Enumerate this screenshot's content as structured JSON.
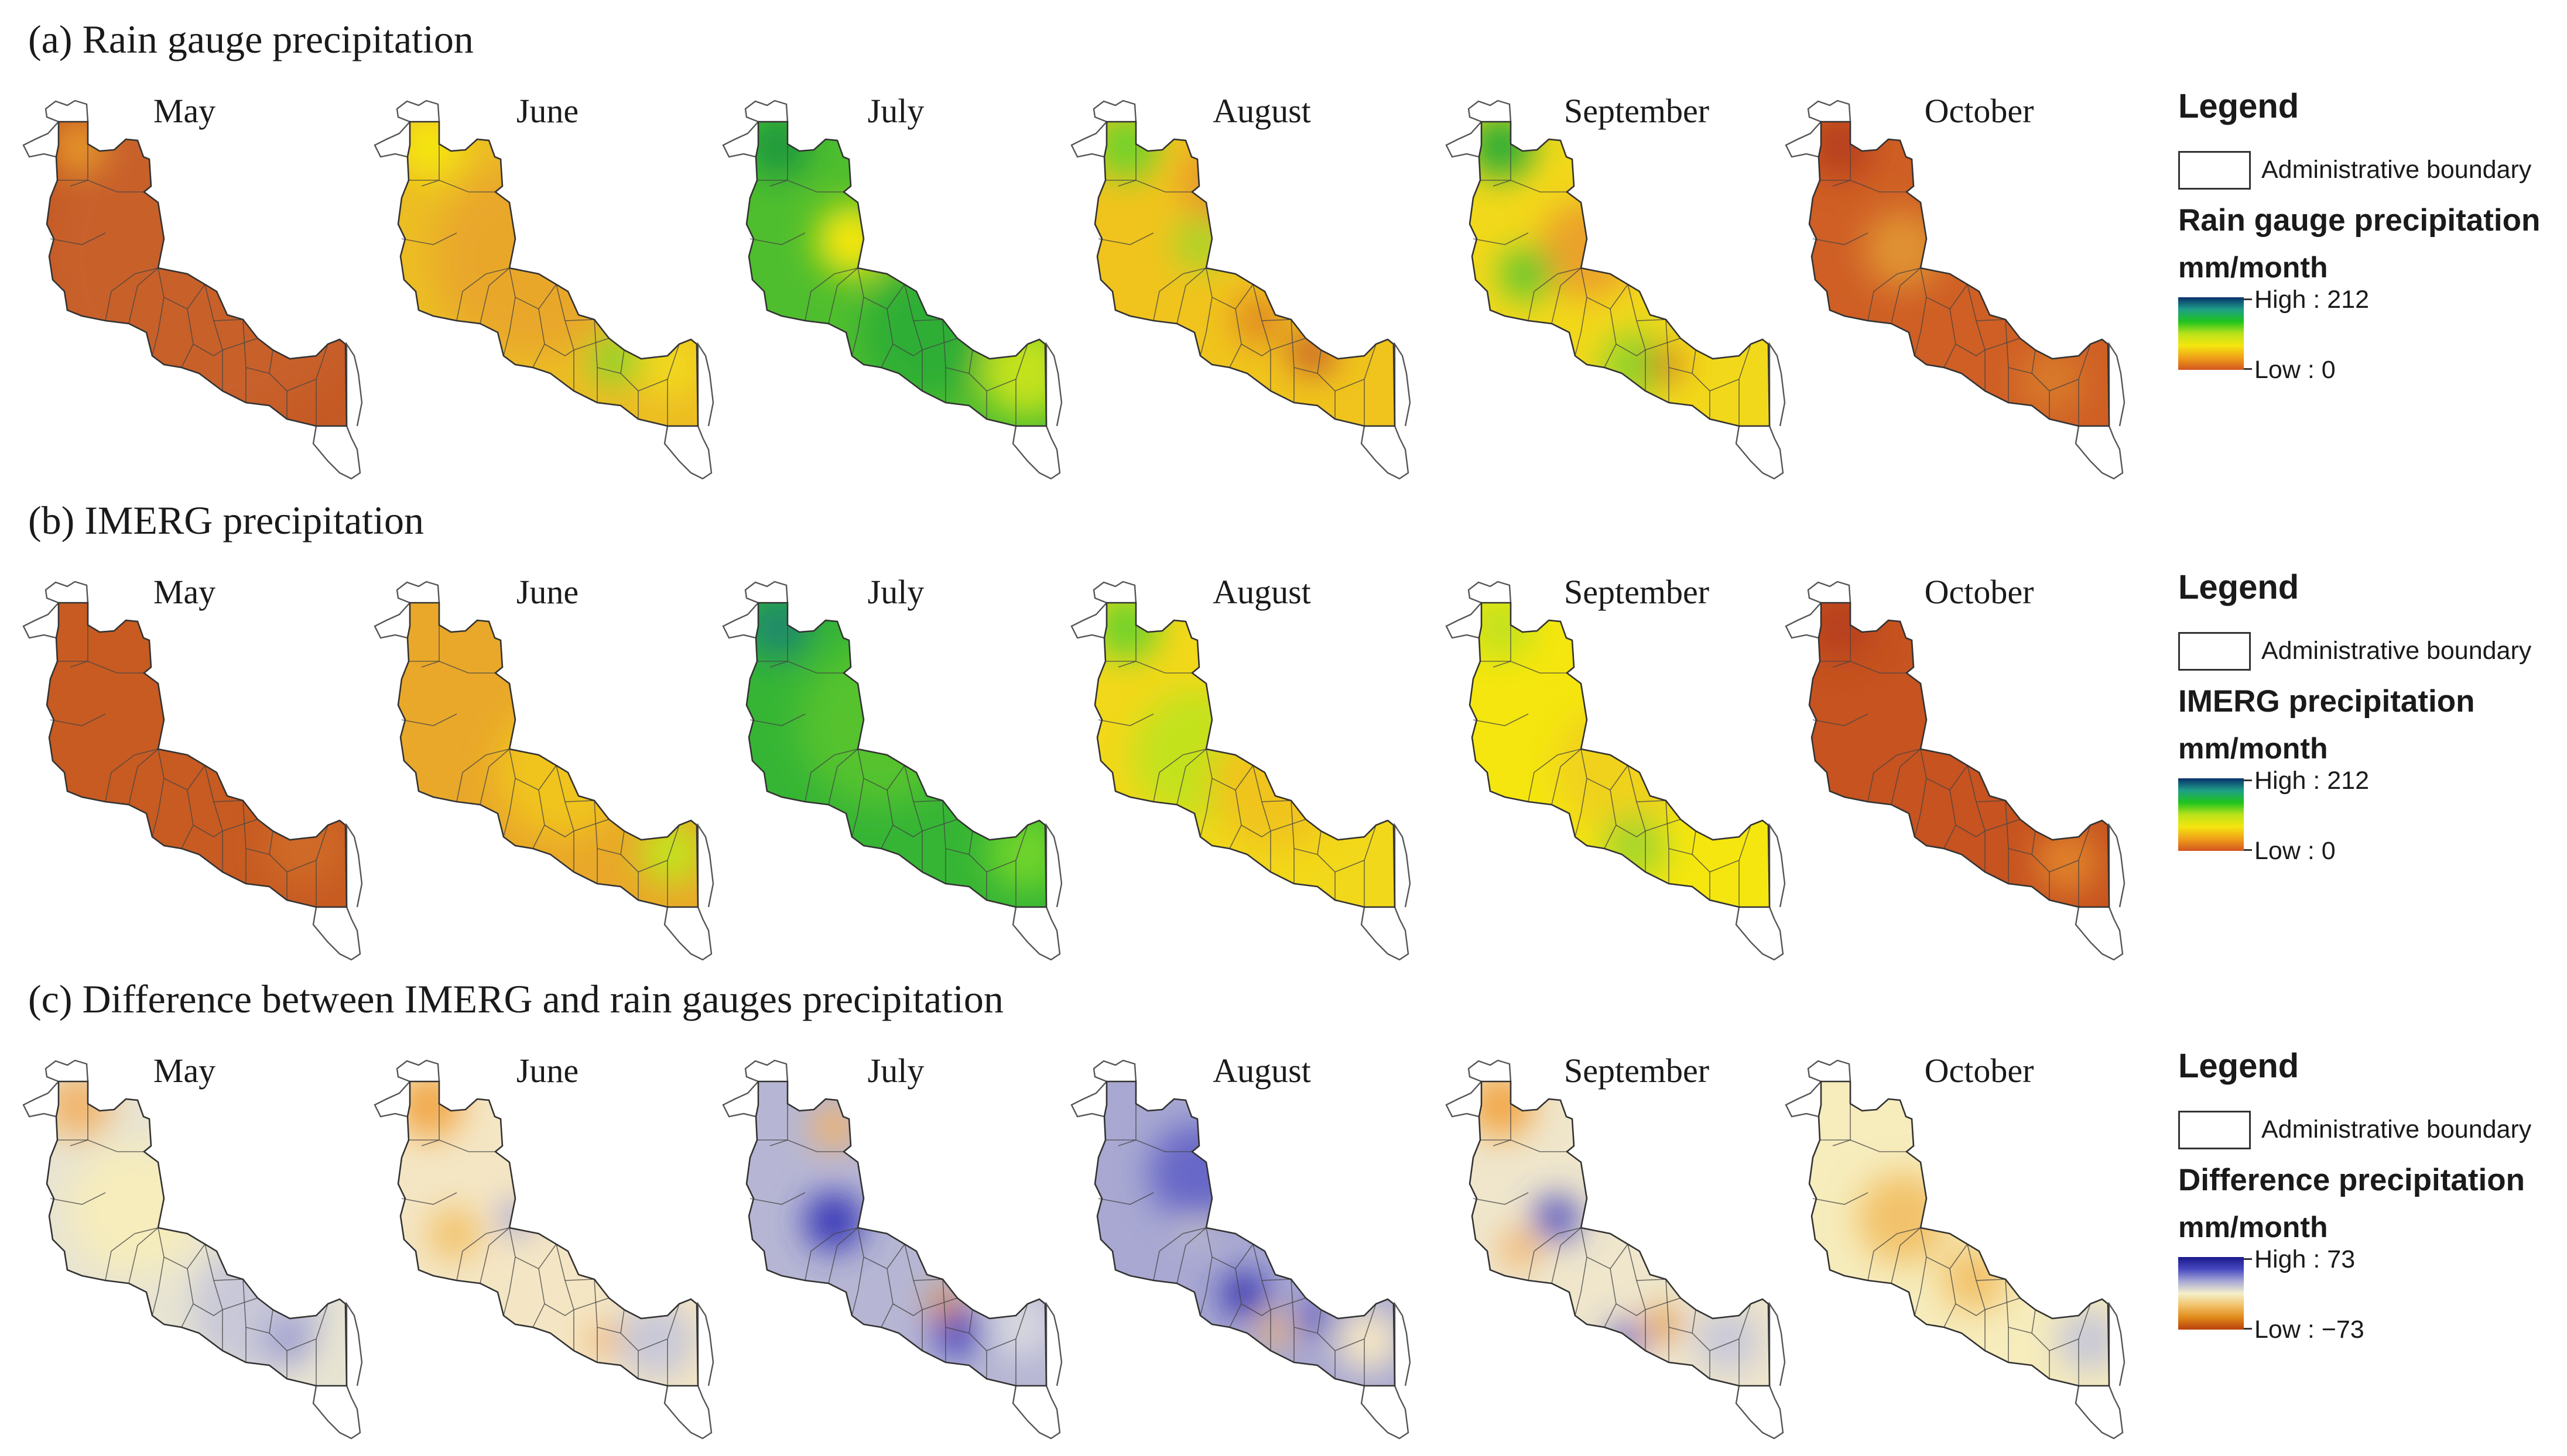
{
  "rows": [
    {
      "title": "(a) Rain gauge precipitation",
      "months": [
        "May",
        "June",
        "July",
        "August",
        "September",
        "October"
      ],
      "legend": {
        "title": "Legend",
        "boundary_label": "Administrative boundary",
        "layer_title": "Rain gauge precipitation",
        "unit": "mm/month",
        "high_label": "High : 212",
        "low_label": "Low : 0",
        "ramp_colors": [
          "#08306b",
          "#1f9e89",
          "#1ec31e",
          "#b9e21a",
          "#f5e60f",
          "#f0a019",
          "#d2551e"
        ]
      },
      "month_fields": [
        {
          "base": "#c55a25",
          "blobs": [
            [
              "#c8602a",
              0.55,
              0.45,
              0.5
            ],
            [
              "#e89a2c",
              0.12,
              0.08,
              0.08
            ]
          ]
        },
        {
          "base": "#ecbd24",
          "blobs": [
            [
              "#e9a72a",
              0.45,
              0.45,
              0.3
            ],
            [
              "#f5e60f",
              0.12,
              0.08,
              0.1
            ],
            [
              "#8ed42a",
              0.72,
              0.78,
              0.08
            ],
            [
              "#f2d81a",
              0.9,
              0.8,
              0.1
            ]
          ]
        },
        {
          "base": "#4fbe2e",
          "blobs": [
            [
              "#1f9a3c",
              0.12,
              0.08,
              0.1
            ],
            [
              "#f07a1a",
              0.36,
              0.39,
              0.05
            ],
            [
              "#f5e60f",
              0.36,
              0.39,
              0.11
            ],
            [
              "#2fae36",
              0.6,
              0.7,
              0.2
            ],
            [
              "#c3e21a",
              0.92,
              0.82,
              0.14
            ]
          ]
        },
        {
          "base": "#f0c41d",
          "blobs": [
            [
              "#6ed32a",
              0.12,
              0.08,
              0.1
            ],
            [
              "#a6d62a",
              0.36,
              0.4,
              0.08
            ],
            [
              "#e89a2c",
              0.42,
              0.2,
              0.12
            ],
            [
              "#c8602a",
              0.72,
              0.76,
              0.07
            ],
            [
              "#e08a24",
              0.55,
              0.65,
              0.08
            ]
          ]
        },
        {
          "base": "#f2d81a",
          "blobs": [
            [
              "#2fae36",
              0.12,
              0.08,
              0.1
            ],
            [
              "#eba22a",
              0.4,
              0.42,
              0.15
            ],
            [
              "#5fc82e",
              0.2,
              0.5,
              0.08
            ],
            [
              "#8ed42a",
              0.55,
              0.8,
              0.1
            ],
            [
              "#d26a26",
              0.65,
              0.8,
              0.05
            ]
          ]
        },
        {
          "base": "#cf5f25",
          "blobs": [
            [
              "#b8401e",
              0.12,
              0.08,
              0.1
            ],
            [
              "#e09330",
              0.32,
              0.42,
              0.12
            ],
            [
              "#d87a2a",
              0.8,
              0.85,
              0.1
            ]
          ]
        }
      ]
    },
    {
      "title": "(b) IMERG precipitation",
      "months": [
        "May",
        "June",
        "July",
        "August",
        "September",
        "October"
      ],
      "legend": {
        "title": "Legend",
        "boundary_label": "Administrative boundary",
        "layer_title": "IMERG precipitation",
        "unit": "mm/month",
        "high_label": "High : 212",
        "low_label": "Low : 0",
        "ramp_colors": [
          "#08306b",
          "#1f9e89",
          "#1ec31e",
          "#b9e21a",
          "#f5e60f",
          "#f0a019",
          "#d2551e"
        ]
      },
      "month_fields": [
        {
          "base": "#c75b22",
          "blobs": [
            [
              "#cf6a26",
              0.85,
              0.8,
              0.12
            ]
          ]
        },
        {
          "base": "#e9a82a",
          "blobs": [
            [
              "#f0c41d",
              0.55,
              0.55,
              0.2
            ],
            [
              "#c3e21a",
              0.9,
              0.82,
              0.1
            ]
          ]
        },
        {
          "base": "#36b535",
          "blobs": [
            [
              "#1f8a6c",
              0.12,
              0.08,
              0.1
            ],
            [
              "#55c22e",
              0.45,
              0.4,
              0.25
            ],
            [
              "#6ed32a",
              0.92,
              0.82,
              0.12
            ]
          ]
        },
        {
          "base": "#f2d81a",
          "blobs": [
            [
              "#6ed32a",
              0.12,
              0.08,
              0.1
            ],
            [
              "#c3e21a",
              0.35,
              0.5,
              0.2
            ],
            [
              "#f0c41d",
              0.6,
              0.6,
              0.2
            ]
          ]
        },
        {
          "base": "#f5e60f",
          "blobs": [
            [
              "#c3e21a",
              0.12,
              0.08,
              0.1
            ],
            [
              "#f0d21a",
              0.5,
              0.55,
              0.2
            ],
            [
              "#a6d62a",
              0.55,
              0.8,
              0.1
            ]
          ]
        },
        {
          "base": "#c65320",
          "blobs": [
            [
              "#b8401e",
              0.12,
              0.08,
              0.1
            ],
            [
              "#e0822a",
              0.85,
              0.85,
              0.1
            ]
          ]
        }
      ]
    },
    {
      "title": "(c) Difference between IMERG and rain gauges precipitation",
      "months": [
        "May",
        "June",
        "July",
        "August",
        "September",
        "October"
      ],
      "legend": {
        "title": "Legend",
        "boundary_label": "Administrative boundary",
        "layer_title": "Difference precipitation",
        "unit": "mm/month",
        "high_label": "High : 73",
        "low_label": "Low : −73",
        "ramp_colors": [
          "#1a1a8c",
          "#4848c0",
          "#a7a7d6",
          "#f4f0cc",
          "#f2c26a",
          "#e08a1a",
          "#b8400c"
        ]
      },
      "month_fields": [
        {
          "base": "#e8e4d2",
          "blobs": [
            [
              "#f2b46a",
              0.12,
              0.08,
              0.1
            ],
            [
              "#f6ecbc",
              0.3,
              0.42,
              0.2
            ],
            [
              "#c8c8d8",
              0.7,
              0.75,
              0.2
            ],
            [
              "#9a9ad0",
              0.8,
              0.85,
              0.07
            ]
          ]
        },
        {
          "base": "#f4e6c4",
          "blobs": [
            [
              "#f2a84a",
              0.12,
              0.08,
              0.1
            ],
            [
              "#9a9ad6",
              0.4,
              0.45,
              0.05
            ],
            [
              "#f2c26a",
              0.2,
              0.5,
              0.08
            ],
            [
              "#c8c8d8",
              0.85,
              0.85,
              0.12
            ],
            [
              "#f2b46a",
              0.68,
              0.85,
              0.05
            ]
          ]
        },
        {
          "base": "#b6b6d4",
          "blobs": [
            [
              "#3838b8",
              0.3,
              0.46,
              0.09
            ],
            [
              "#f2b46a",
              0.3,
              0.15,
              0.07
            ],
            [
              "#4848c0",
              0.7,
              0.82,
              0.08
            ],
            [
              "#e08a1a",
              0.66,
              0.73,
              0.05
            ],
            [
              "#d8d8e0",
              0.9,
              0.8,
              0.1
            ]
          ]
        },
        {
          "base": "#a8a8d2",
          "blobs": [
            [
              "#f6ecbc",
              0.35,
              0.45,
              0.05
            ],
            [
              "#6868c8",
              0.35,
              0.3,
              0.15
            ],
            [
              "#3030b0",
              0.5,
              0.7,
              0.07
            ],
            [
              "#f2b46a",
              0.6,
              0.82,
              0.05
            ],
            [
              "#3838b8",
              0.73,
              0.78,
              0.05
            ],
            [
              "#f4e6c4",
              0.9,
              0.85,
              0.1
            ]
          ]
        },
        {
          "base": "#efe6cc",
          "blobs": [
            [
              "#f2a84a",
              0.12,
              0.08,
              0.1
            ],
            [
              "#5050c0",
              0.3,
              0.45,
              0.07
            ],
            [
              "#f2b46a",
              0.18,
              0.55,
              0.06
            ],
            [
              "#4848c0",
              0.52,
              0.85,
              0.05
            ],
            [
              "#e08a1a",
              0.64,
              0.8,
              0.05
            ],
            [
              "#c8c8d8",
              0.85,
              0.85,
              0.1
            ]
          ]
        },
        {
          "base": "#f6ecbc",
          "blobs": [
            [
              "#f2c26a",
              0.32,
              0.45,
              0.14
            ],
            [
              "#f2c26a",
              0.55,
              0.65,
              0.1
            ],
            [
              "#c8c8d8",
              0.92,
              0.85,
              0.1
            ]
          ]
        }
      ]
    }
  ]
}
